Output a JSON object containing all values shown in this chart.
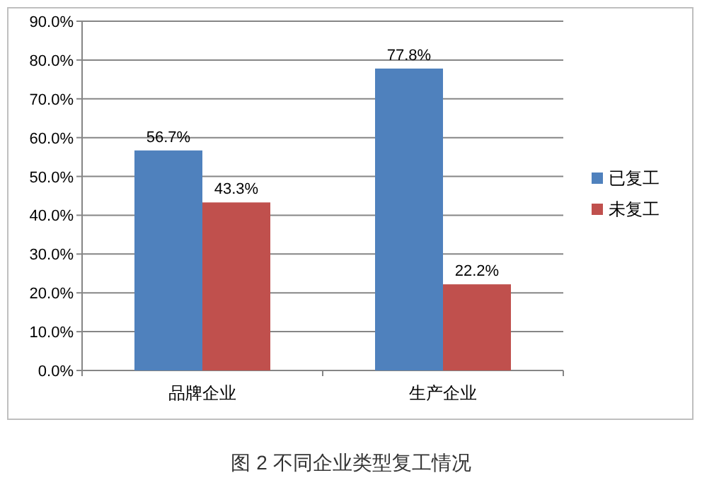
{
  "chart_data": {
    "type": "bar",
    "title": "图 2 不同企业类型复工情况",
    "categories": [
      "品牌企业",
      "生产企业"
    ],
    "series": [
      {
        "name": "已复工",
        "color": "#4f81bd",
        "values": [
          56.7,
          77.8
        ],
        "value_labels": [
          "56.7%",
          "77.8%"
        ]
      },
      {
        "name": "未复工",
        "color": "#c0504d",
        "values": [
          43.3,
          22.2
        ],
        "value_labels": [
          "43.3%",
          "22.2%"
        ]
      }
    ],
    "ylim": [
      0,
      90
    ],
    "yticks": [
      {
        "value": 0,
        "label": "0.0%"
      },
      {
        "value": 10,
        "label": "10.0%"
      },
      {
        "value": 20,
        "label": "20.0%"
      },
      {
        "value": 30,
        "label": "30.0%"
      },
      {
        "value": 40,
        "label": "40.0%"
      },
      {
        "value": 50,
        "label": "50.0%"
      },
      {
        "value": 60,
        "label": "60.0%"
      },
      {
        "value": 70,
        "label": "70.0%"
      },
      {
        "value": 80,
        "label": "80.0%"
      },
      {
        "value": 90,
        "label": "90.0%"
      }
    ],
    "grid": "y",
    "legend": "right"
  }
}
